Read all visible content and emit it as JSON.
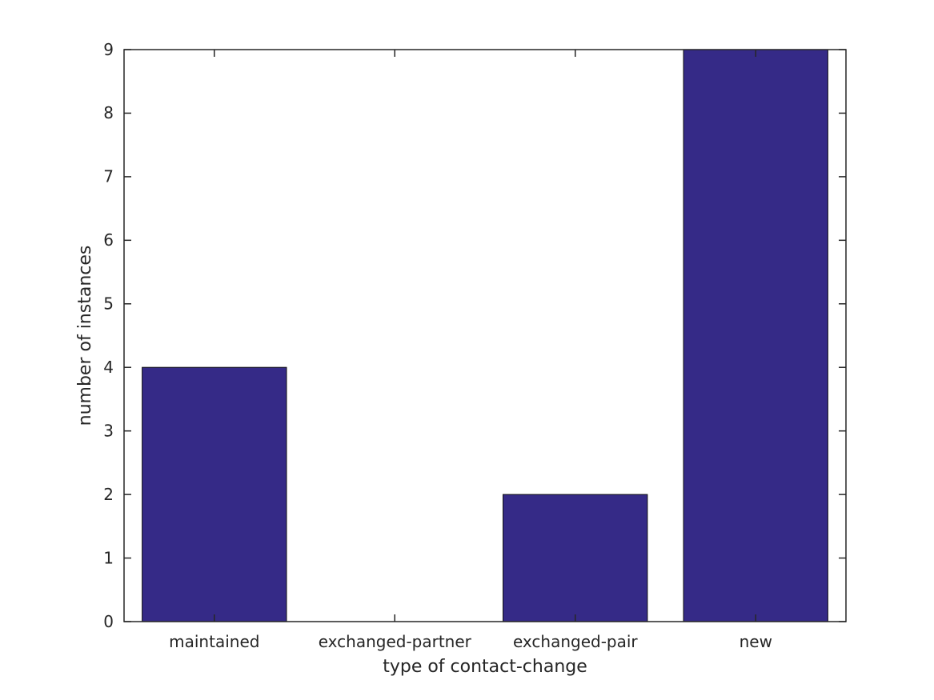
{
  "figure": {
    "background_color": "#ffffff"
  },
  "chart_data": {
    "type": "bar",
    "categories": [
      "maintained",
      "exchanged-partner",
      "exchanged-pair",
      "new"
    ],
    "values": [
      4,
      0,
      2,
      9
    ],
    "xlabel": "type of contact-change",
    "ylabel": "number of instances",
    "ylim": [
      0,
      9
    ],
    "yticks": [
      0,
      1,
      2,
      3,
      4,
      5,
      6,
      7,
      8,
      9
    ],
    "bar_color": "#352A87",
    "bar_edge_color": "#101010",
    "axis_color": "#262626",
    "text_color": "#262626",
    "bar_width_fraction": 0.8,
    "grid": false,
    "tick_direction": "in",
    "tick_mirroring": "all-four-spines"
  }
}
